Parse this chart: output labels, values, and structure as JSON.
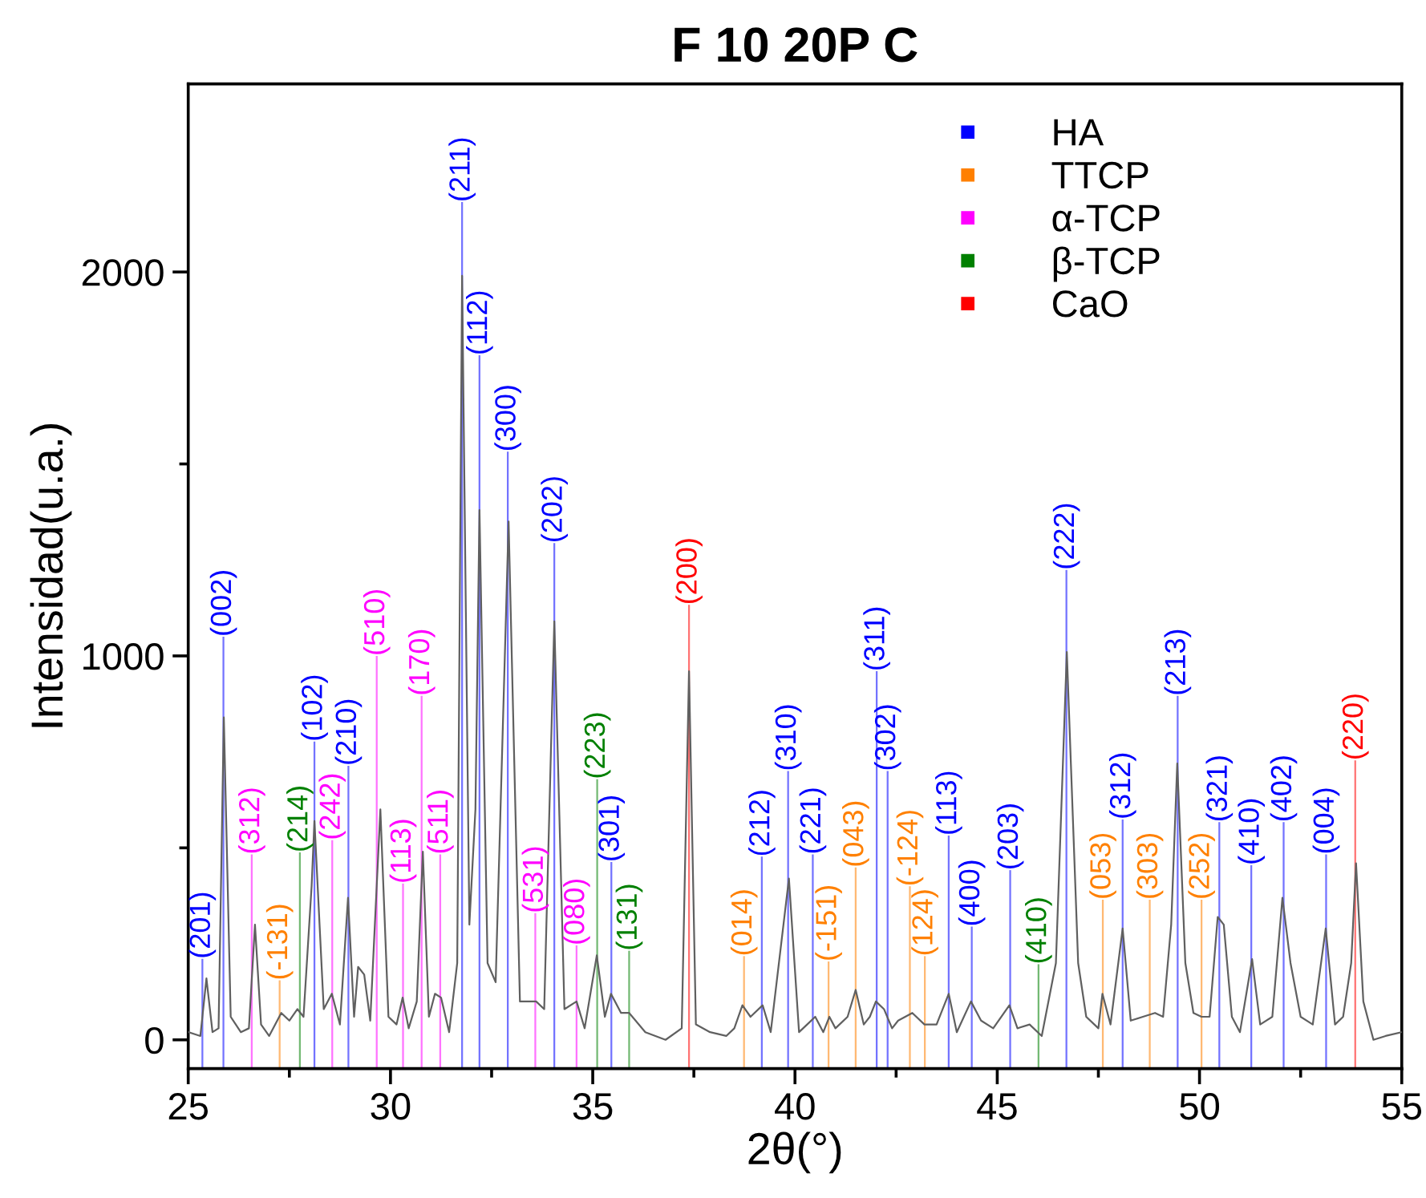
{
  "chart_data": {
    "type": "line",
    "title": "F 10 20P C",
    "xlabel": "2θ(°)",
    "ylabel": "Intensidad(u.a.)",
    "xlim": [
      25,
      55
    ],
    "ylim": [
      -75,
      2490
    ],
    "xticks": [
      25,
      {
        "value": 27.5,
        "label": null
      },
      30,
      {
        "value": 32.5,
        "label": null
      },
      35,
      {
        "value": 37.5,
        "label": null
      },
      40,
      {
        "value": 42.5,
        "label": null
      },
      45,
      {
        "value": 47.5,
        "label": null
      },
      50,
      {
        "value": 52.5,
        "label": null
      },
      55
    ],
    "yticks": [
      0,
      {
        "value": 500,
        "label": null
      },
      1000,
      {
        "value": 1500,
        "label": null
      },
      2000
    ],
    "grid": false,
    "legend": "top right",
    "series": [
      {
        "color": "#606060",
        "x": [
          25.0,
          25.3,
          25.45,
          25.6,
          25.75,
          25.88,
          26.05,
          26.3,
          26.5,
          26.65,
          26.8,
          27.0,
          27.3,
          27.5,
          27.7,
          27.85,
          28.05,
          28.12,
          28.35,
          28.55,
          28.75,
          28.95,
          29.1,
          29.2,
          29.35,
          29.5,
          29.75,
          29.95,
          30.15,
          30.3,
          30.45,
          30.65,
          30.8,
          30.95,
          31.1,
          31.25,
          31.45,
          31.65,
          31.77,
          31.95,
          32.1,
          32.2,
          32.4,
          32.6,
          32.92,
          33.2,
          33.6,
          33.8,
          34.05,
          34.3,
          34.6,
          34.8,
          35.1,
          35.3,
          35.45,
          35.7,
          35.9,
          36.3,
          36.8,
          37.2,
          37.38,
          37.55,
          37.9,
          38.3,
          38.5,
          38.7,
          38.9,
          39.2,
          39.4,
          39.85,
          40.1,
          40.3,
          40.5,
          40.7,
          40.85,
          41.0,
          41.3,
          41.5,
          41.7,
          41.85,
          42.0,
          42.2,
          42.4,
          42.55,
          42.9,
          43.2,
          43.5,
          43.8,
          44.0,
          44.35,
          44.6,
          44.9,
          45.3,
          45.5,
          45.8,
          46.1,
          46.45,
          46.72,
          47.0,
          47.2,
          47.5,
          47.6,
          47.8,
          48.1,
          48.3,
          48.6,
          48.9,
          49.1,
          49.3,
          49.45,
          49.65,
          49.85,
          50.05,
          50.25,
          50.45,
          50.6,
          50.8,
          51.0,
          51.3,
          51.5,
          51.8,
          52.05,
          52.25,
          52.5,
          52.8,
          53.12,
          53.35,
          53.55,
          53.75,
          53.87,
          54.05,
          54.3,
          54.6,
          55.0
        ],
        "values": [
          20,
          10,
          160,
          20,
          30,
          840,
          60,
          20,
          30,
          300,
          40,
          10,
          70,
          50,
          80,
          60,
          400,
          570,
          80,
          120,
          40,
          370,
          60,
          190,
          170,
          50,
          600,
          60,
          40,
          110,
          30,
          100,
          490,
          60,
          120,
          110,
          20,
          200,
          1990,
          300,
          600,
          1380,
          200,
          150,
          1350,
          100,
          100,
          80,
          1090,
          80,
          100,
          30,
          220,
          60,
          120,
          70,
          70,
          20,
          0,
          30,
          960,
          40,
          20,
          10,
          30,
          90,
          60,
          90,
          20,
          420,
          20,
          40,
          60,
          20,
          60,
          30,
          60,
          130,
          40,
          60,
          100,
          80,
          30,
          50,
          70,
          40,
          40,
          120,
          20,
          100,
          50,
          30,
          90,
          30,
          40,
          10,
          200,
          1010,
          200,
          60,
          30,
          120,
          40,
          290,
          50,
          60,
          70,
          60,
          300,
          720,
          200,
          70,
          60,
          60,
          320,
          300,
          60,
          20,
          210,
          40,
          60,
          370,
          200,
          60,
          40,
          290,
          40,
          60,
          200,
          460,
          100,
          0,
          10,
          20
        ]
      },
      {
        "type": "bar",
        "name": "HA",
        "color": "#0000ff",
        "x": [
          25.35,
          25.87,
          28.12,
          28.96,
          31.77,
          32.2,
          32.9,
          34.05,
          35.46,
          39.18,
          39.83,
          40.44,
          42.02,
          42.29,
          43.8,
          44.37,
          45.32,
          46.71,
          48.1,
          49.46,
          50.49,
          51.28,
          52.08,
          53.13
        ],
        "base": [
          -75,
          -75,
          -75,
          -75,
          -75,
          -75,
          -75,
          -75,
          -75,
          -75,
          -75,
          -75,
          -75,
          -75,
          -75,
          -75,
          -75,
          -75,
          -75,
          -75,
          -75,
          -75,
          -75,
          -75
        ],
        "values": [
          286,
          1125,
          852,
          789,
          2257,
          1858,
          1607,
          1369,
          538,
          552,
          775,
          558,
          1035,
          775,
          607,
          370,
          517,
          1299,
          649,
          971,
          642,
          530,
          642,
          558
        ]
      },
      {
        "type": "bar",
        "name": "TTCP",
        "color": "#ff8000",
        "x": [
          27.26,
          38.74,
          40.83,
          41.5,
          42.84,
          43.21,
          47.61,
          48.77,
          50.05
        ],
        "base": [
          -75,
          -75,
          -75,
          -75,
          -75,
          -75,
          -75,
          -75,
          -75
        ],
        "values": [
          230,
          293,
          279,
          524,
          475,
          293,
          440,
          440,
          440
        ]
      },
      {
        "type": "bar",
        "name": "α-TCP",
        "color": "#ff00ff",
        "x": [
          26.57,
          28.56,
          29.66,
          30.31,
          30.77,
          31.23,
          33.58,
          34.6
        ],
        "base": [
          -75,
          -75,
          -75,
          -75,
          -75,
          -75,
          -75,
          -75
        ],
        "values": [
          558,
          595,
          1075,
          482,
          971,
          558,
          405,
          321
        ]
      },
      {
        "type": "bar",
        "name": "β-TCP",
        "color": "#008000",
        "x": [
          27.76,
          35.11,
          35.9,
          46.02
        ],
        "base": [
          -75,
          -75,
          -75,
          -75
        ],
        "values": [
          563,
          754,
          307,
          272
        ]
      },
      {
        "type": "bar",
        "name": "CaO",
        "color": "#ff0000",
        "x": [
          37.38,
          53.85
        ],
        "base": [
          -75,
          -75
        ],
        "values": [
          1208,
          803
        ]
      }
    ],
    "annotations": [
      {
        "text": "(201)",
        "x": 25.35,
        "y": 211
      },
      {
        "text": "(002)",
        "x": 25.87,
        "y": 1050
      },
      {
        "text": "(102)",
        "x": 28.12,
        "y": 777
      },
      {
        "text": "(210)",
        "x": 28.96,
        "y": 714
      },
      {
        "text": "(211)",
        "x": 31.77,
        "y": 2182
      },
      {
        "text": "(112)",
        "x": 32.2,
        "y": 1783
      },
      {
        "text": "(300)",
        "x": 32.9,
        "y": 1532
      },
      {
        "text": "(202)",
        "x": 34.05,
        "y": 1294
      },
      {
        "text": "(301)",
        "x": 35.46,
        "y": 463
      },
      {
        "text": "(212)",
        "x": 39.18,
        "y": 477
      },
      {
        "text": "(310)",
        "x": 39.83,
        "y": 700
      },
      {
        "text": "(221)",
        "x": 40.44,
        "y": 483
      },
      {
        "text": "(311)",
        "x": 42.02,
        "y": 960
      },
      {
        "text": "(302)",
        "x": 42.29,
        "y": 700
      },
      {
        "text": "(113)",
        "x": 43.8,
        "y": 532
      },
      {
        "text": "(400)",
        "x": 44.37,
        "y": 295
      },
      {
        "text": "(203)",
        "x": 45.32,
        "y": 442
      },
      {
        "text": "(222)",
        "x": 46.71,
        "y": 1224
      },
      {
        "text": "(312)",
        "x": 48.1,
        "y": 574
      },
      {
        "text": "(213)",
        "x": 49.46,
        "y": 896
      },
      {
        "text": "(321)",
        "x": 50.49,
        "y": 567
      },
      {
        "text": "(410)",
        "x": 51.28,
        "y": 455
      },
      {
        "text": "(402)",
        "x": 52.08,
        "y": 567
      },
      {
        "text": "(004)",
        "x": 53.13,
        "y": 483
      },
      {
        "text": "(-131)",
        "x": 27.26,
        "y": 155
      },
      {
        "text": "(014)",
        "x": 38.74,
        "y": 218
      },
      {
        "text": "(-151)",
        "x": 40.83,
        "y": 204
      },
      {
        "text": "(043)",
        "x": 41.5,
        "y": 449
      },
      {
        "text": "(-124)",
        "x": 42.84,
        "y": 400
      },
      {
        "text": "(124)",
        "x": 43.21,
        "y": 218
      },
      {
        "text": "(053)",
        "x": 47.61,
        "y": 365
      },
      {
        "text": "(303)",
        "x": 48.77,
        "y": 365
      },
      {
        "text": "(252)",
        "x": 50.05,
        "y": 365
      },
      {
        "text": "(312)",
        "x": 26.57,
        "y": 483
      },
      {
        "text": "(242)",
        "x": 28.56,
        "y": 520
      },
      {
        "text": "(510)",
        "x": 29.66,
        "y": 1000
      },
      {
        "text": "(113)",
        "x": 30.31,
        "y": 407
      },
      {
        "text": "(170)",
        "x": 30.77,
        "y": 896
      },
      {
        "text": "(511)",
        "x": 31.23,
        "y": 483
      },
      {
        "text": "(531)",
        "x": 33.58,
        "y": 330
      },
      {
        "text": "(080)",
        "x": 34.6,
        "y": 246
      },
      {
        "text": "(214)",
        "x": 27.76,
        "y": 488
      },
      {
        "text": "(223)",
        "x": 35.11,
        "y": 679
      },
      {
        "text": "(131)",
        "x": 35.9,
        "y": 232
      },
      {
        "text": "(410)",
        "x": 46.02,
        "y": 197
      },
      {
        "text": "(200)",
        "x": 37.38,
        "y": 1133
      },
      {
        "text": "(220)",
        "x": 53.85,
        "y": 728
      }
    ]
  }
}
